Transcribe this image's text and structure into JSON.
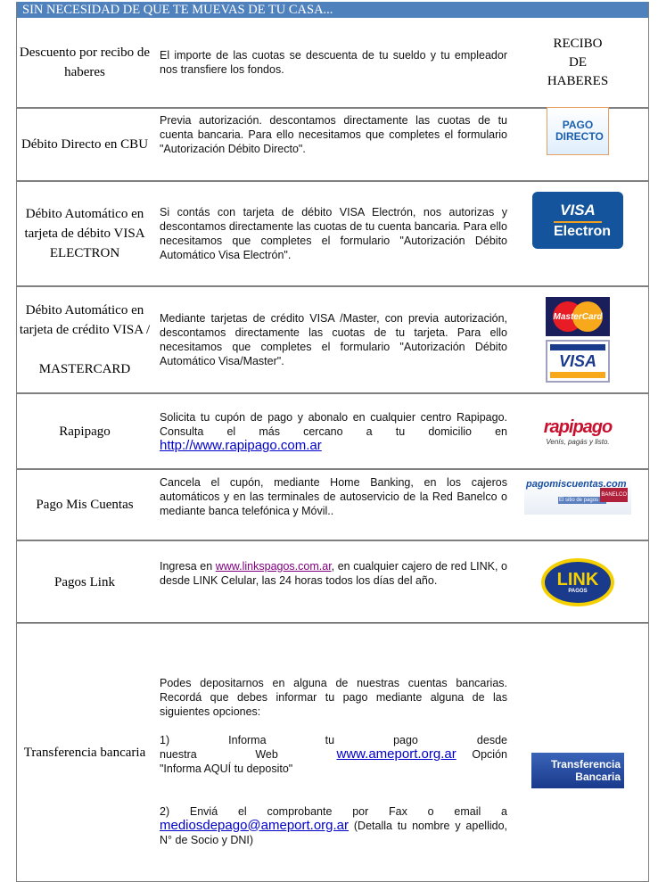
{
  "header": {
    "title": "SIN NECESIDAD DE QUE TE MUEVAS DE TU CASA..."
  },
  "colors": {
    "header_bg": "#4f81bd",
    "link": "#0000cc",
    "visited_link": "#800080"
  },
  "rows": [
    {
      "label": "Descuento por recibo de haberes",
      "text": "El importe de las cuotas se descuenta de tu sueldo y tu empleador nos transfiere los fondos.",
      "logo_text": [
        "RECIBO",
        "DE",
        "HABERES"
      ]
    },
    {
      "label": "Débito Directo en CBU",
      "text": "Previa autorización.  descontamos directamente las cuotas de tu cuenta bancaria. Para ello necesitamos que completes el formulario \"Autorización Débito Directo\".",
      "logo": "PAGO DIRECTO"
    },
    {
      "label": "Débito Automático en tarjeta de débito VISA ELECTRON",
      "text": "Si contás con tarjeta de débito VISA Electrón, nos autorizas y descontamos directamente las cuotas de tu cuenta bancaria. Para ello necesitamos que completes el formulario \"Autorización Débito Automático Visa Electrón\".",
      "logo": [
        "VISA",
        "Electron"
      ]
    },
    {
      "label": "Débito Automático en tarjeta de crédito VISA /",
      "label2": "MASTERCARD",
      "text": "Mediante tarjetas de crédito VISA /Master, con previa autorización, descontamos directamente las cuotas de tu tarjeta. Para ello necesitamos que completes el formulario \"Autorización Débito Automático Visa/Master\".",
      "logo": [
        "MasterCard",
        "VISA"
      ]
    },
    {
      "label": "Rapipago",
      "text": "Solicita tu cupón de pago y abonalo en cualquier centro Rapipago. Consulta el más cercano a tu domicilio en ",
      "link": "http://www.rapipago.com.ar",
      "logo": [
        "rapipago",
        "Venís, pagás y listo."
      ]
    },
    {
      "label": "Pago Mis Cuentas",
      "text": "Cancela el cupón, mediante Home Banking, en los cajeros automáticos y en las terminales de autoservicio de la Red Banelco o mediante banca telefónica y Móvil..",
      "logo": [
        "pagomiscuentas.com",
        "El sitio de pagos de",
        "BANELCO"
      ]
    },
    {
      "label": "Pagos Link",
      "text_pre": "Ingresa en ",
      "link": "www.linkspagos.com.ar",
      "text": ", en cualquier cajero de red LINK, o desde LINK Celular, las 24 horas todos los días del año.",
      "logo": [
        "LINK",
        "PAGOS"
      ]
    },
    {
      "label": "Transferencia bancaria",
      "text": "Podes depositarnos en alguna de nuestras cuentas bancarias. Recordá que debes informar tu pago mediante alguna de las siguientes opciones:",
      "opt1": "1) Informa tu pago desde nuestra Web ",
      "opt1_link": "www.ameport.org.ar",
      "opt1_post": "  Opción \"Informa AQUÍ tu deposito\"",
      "opt2": "2) Enviá el comprobante por Fax o email a ",
      "opt2_link": "mediosdepago@ameport.org.ar",
      "opt2_post": "  (Detalla tu nombre y apellido, N° de Socio y DNI)",
      "logo": [
        "Transferencia",
        "Bancaria"
      ]
    }
  ]
}
